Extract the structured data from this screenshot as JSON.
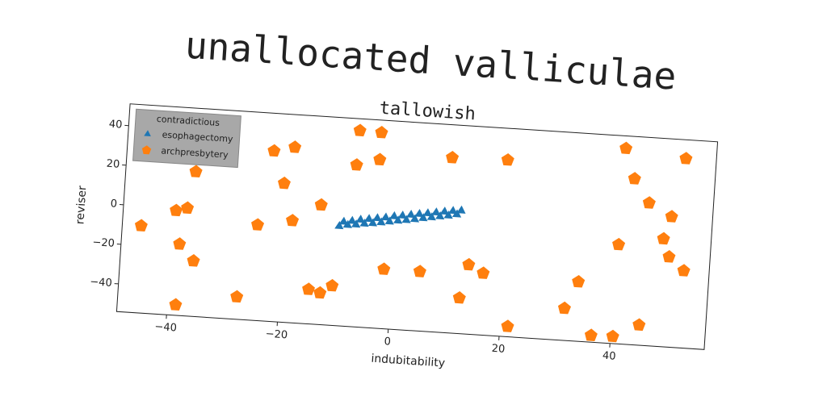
{
  "chart_data": {
    "type": "scatter",
    "title": "unallocated valliculae",
    "subtitle": "tallowish",
    "x_label": "indubitability",
    "y_label": "reviser",
    "legend_title": "contradictious",
    "legend_position": "upper left",
    "xlim": [
      -49,
      57
    ],
    "ylim": [
      -54,
      51
    ],
    "xticks": [
      {
        "value": -40,
        "label": "−40"
      },
      {
        "value": -20,
        "label": "−20"
      },
      0,
      20,
      40
    ],
    "yticks": [
      {
        "value": -40,
        "label": "−40"
      },
      {
        "value": -20,
        "label": "−20"
      },
      0,
      20,
      40
    ],
    "series": [
      {
        "name": "esophagectomy",
        "color": "#1f77b4",
        "marker": "triangle",
        "x": [
          -10,
          -9.25,
          -8.5,
          -7.75,
          -7,
          -6.25,
          -5.5,
          -4.75,
          -4,
          -3.25,
          -2.5,
          -1.75,
          -1,
          -0.25,
          0.5,
          1.25,
          2,
          2.75,
          3.5,
          4.25,
          5,
          5.75,
          6.5,
          7.25,
          8,
          8.75,
          9.5,
          10.25,
          11,
          11.75
        ],
        "values": [
          -3.8,
          -1.5,
          -3.0,
          -0.8,
          -2.5,
          0.1,
          -1.8,
          0.7,
          -1.3,
          1.4,
          -0.6,
          2.0,
          0.1,
          2.9,
          0.8,
          3.5,
          1.4,
          4.2,
          2.1,
          4.9,
          2.9,
          5.5,
          3.6,
          6.2,
          4.3,
          6.9,
          5.0,
          7.5,
          5.9,
          8.0
        ]
      },
      {
        "name": "archpresbytery",
        "color": "#ff7f0e",
        "marker": "pentagon",
        "x": [
          -45.6,
          -39.5,
          -37.5,
          -36.4,
          -38.5,
          -35.8,
          -38.5,
          -27.6,
          -24.7,
          -22.6,
          -18.9,
          -20.4,
          -18.5,
          -13.5,
          -14.8,
          -12.7,
          -10.6,
          -7.4,
          -3.5,
          -7.6,
          -3.5,
          -1.5,
          5,
          9.5,
          12.4,
          13.7,
          16.4,
          19.5,
          21.4,
          31.4,
          33.6,
          36.5,
          40.4,
          45,
          40.4,
          40.6,
          42.5,
          45.4,
          49.6,
          48.4,
          49.6,
          52.4,
          51.5
        ],
        "values": [
          -10,
          -1.2,
          0.4,
          19,
          -18,
          -26,
          -48.7,
          -42.7,
          -5.8,
          32,
          34.5,
          16,
          -2.5,
          6.3,
          -36.6,
          -38,
          -34,
          45,
          44.7,
          27.6,
          31,
          -24,
          -24,
          34.4,
          -36,
          -19,
          -22.8,
          35,
          -48.8,
          -37.8,
          -24,
          -50.6,
          -50.4,
          -43.8,
          -4,
          44.7,
          29.7,
          18,
          11.8,
          0.4,
          -8.5,
          -15,
          41.5
        ]
      }
    ]
  }
}
